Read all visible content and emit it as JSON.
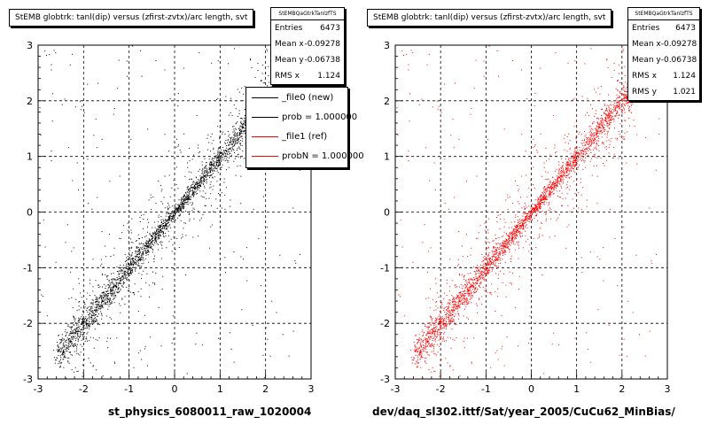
{
  "chart_data": [
    {
      "type": "scatter",
      "title": "StEMB globtrk: tanl(dip) versus (zfirst-zvtx)/arc length, svt",
      "xlim": [
        -3,
        3
      ],
      "ylim": [
        -3,
        3
      ],
      "x_ticks": [
        "-3",
        "-2",
        "-1",
        "0",
        "1",
        "2",
        "3"
      ],
      "y_ticks": [
        "-3",
        "-2",
        "-1",
        "0",
        "1",
        "2",
        "3"
      ],
      "grid": true,
      "xlabel": "st_physics_6080011_raw_1020004",
      "ylabel": "",
      "series": [
        {
          "name": "_file0 (new)",
          "color": "#000000",
          "trend": {
            "x": [
              -2.6,
              2.6
            ],
            "y": [
              -2.6,
              2.6
            ]
          }
        }
      ],
      "stats": {
        "header": "StEMBQaGtrkTanlzfTS",
        "rows": [
          {
            "label": "Entries",
            "value": "6473"
          },
          {
            "label": "Mean x",
            "value": "-0.09278"
          },
          {
            "label": "Mean y",
            "value": "-0.06738"
          },
          {
            "label": "RMS x",
            "value": "1.124"
          }
        ]
      },
      "legend": {
        "placement": "top-right",
        "entries": [
          {
            "label": "_file0 (new)",
            "color": "#000000"
          },
          {
            "label": "prob = 1.000000",
            "color": "#000000"
          },
          {
            "label": "_file1 (ref)",
            "color": "#ff0000"
          },
          {
            "label": "probN = 1.000000",
            "color": "#ff0000"
          }
        ]
      }
    },
    {
      "type": "scatter",
      "title": "StEMB globtrk: tanl(dip) versus (zfirst-zvtx)/arc length, svt",
      "xlim": [
        -3,
        3
      ],
      "ylim": [
        -3,
        3
      ],
      "x_ticks": [
        "-3",
        "-2",
        "-1",
        "0",
        "1",
        "2",
        "3"
      ],
      "y_ticks": [
        "-3",
        "-2",
        "-1",
        "0",
        "1",
        "2",
        "3"
      ],
      "grid": true,
      "xlabel": "dev/daq_sl302.ittf/Sat/year_2005/CuCu62_MinBias/",
      "ylabel": "",
      "series": [
        {
          "name": "_file1 (ref)",
          "color": "#ff0000",
          "trend": {
            "x": [
              -2.6,
              2.6
            ],
            "y": [
              -2.6,
              2.6
            ]
          }
        }
      ],
      "stats": {
        "header": "StEMBQaGtrkTanlzfTS",
        "rows": [
          {
            "label": "Entries",
            "value": "6473"
          },
          {
            "label": "Mean x",
            "value": "-0.09278"
          },
          {
            "label": "Mean y",
            "value": "-0.06738"
          },
          {
            "label": "RMS x",
            "value": "1.124"
          },
          {
            "label": "RMS y",
            "value": "1.021"
          }
        ]
      }
    }
  ]
}
